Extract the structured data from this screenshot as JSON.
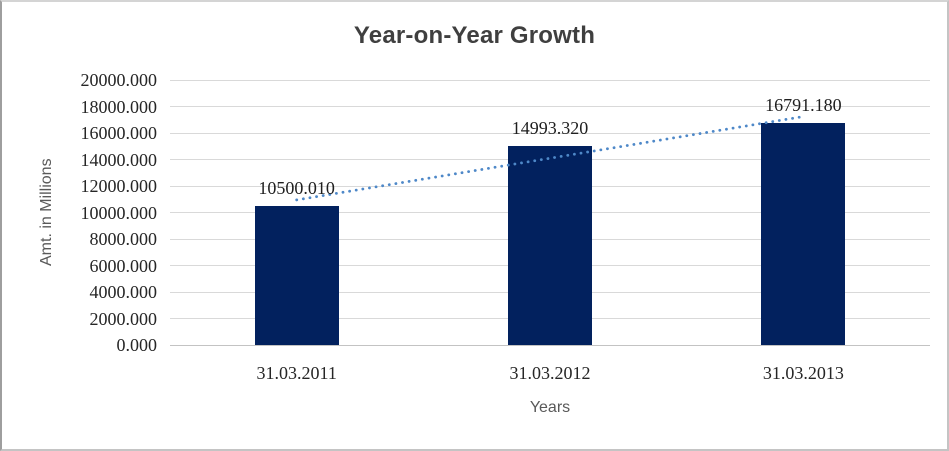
{
  "chart_data": {
    "type": "bar",
    "title": "Year-on-Year Growth",
    "xlabel": "Years",
    "ylabel": "Amt. in Millions",
    "categories": [
      "31.03.2011",
      "31.03.2012",
      "31.03.2013"
    ],
    "values": [
      10500.01,
      14993.32,
      16791.18
    ],
    "data_labels": [
      "10500.010",
      "14993.320",
      "16791.180"
    ],
    "ylim": [
      0,
      20000
    ],
    "y_tick_step": 2000,
    "y_tick_labels": [
      "0.000",
      "2000.000",
      "4000.000",
      "6000.000",
      "8000.000",
      "10000.000",
      "12000.000",
      "14000.000",
      "16000.000",
      "18000.000",
      "20000.000"
    ],
    "grid": true,
    "legend": "none",
    "trendline": {
      "type": "linear",
      "style": "dotted"
    },
    "colors": {
      "bar": "#02215E",
      "trendline": "#4E88C8",
      "gridline": "#D9D9D9",
      "axis_line": "#C3C3C3",
      "title_text": "#3F3F3F",
      "axis_title_text": "#595959",
      "tick_text": "#262626"
    }
  }
}
